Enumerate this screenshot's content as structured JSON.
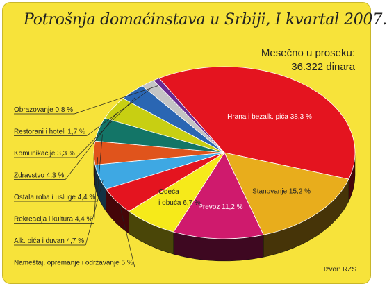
{
  "title": "Potrošnja domaćinstava u Srbiji, I kvartal 2007.",
  "subtitle_line1": "Mesečno u proseku:",
  "subtitle_line2": "36.322 dinara",
  "source": "Izvor: RZS",
  "chart_data": {
    "type": "pie",
    "title": "Potrošnja domaćinstava u Srbiji, I kvartal 2007.",
    "unit": "%",
    "slices": [
      {
        "label": "Hrana i bezalk. pića 38,3 %",
        "value": 38.3,
        "color": "#e4141f",
        "label_inside": true,
        "text_color": "#ffffff"
      },
      {
        "label": "Stanovanje 15,2 %",
        "value": 15.2,
        "color": "#e8ad1c",
        "label_inside": true,
        "text_color": "#222222"
      },
      {
        "label": "Prevoz 11,2 %",
        "value": 11.2,
        "color": "#cf1a6d",
        "label_inside": true,
        "text_color": "#ffffff"
      },
      {
        "label": "Odeća i obuća 6,7 %",
        "value": 6.7,
        "color": "#f6ea1a",
        "label_inside": true,
        "text_color": "#222222"
      },
      {
        "label": "Nameštaj, opremanje i održavanje 5 %",
        "value": 5.0,
        "color": "#e4141f",
        "label_inside": false
      },
      {
        "label": "Alk. pića i duvan 4,7 %",
        "value": 4.7,
        "color": "#3ea8e3",
        "label_inside": false
      },
      {
        "label": "Rekreacija i kultura 4,4 %",
        "value": 4.4,
        "color": "#e0541c",
        "label_inside": false
      },
      {
        "label": "Ostala roba i usluge 4,4 %",
        "value": 4.4,
        "color": "#137567",
        "label_inside": false
      },
      {
        "label": "Zdravstvo 4,3 %",
        "value": 4.3,
        "color": "#c8cf12",
        "label_inside": false
      },
      {
        "label": "Komunikacije 3,3 %",
        "value": 3.3,
        "color": "#2a66b3",
        "label_inside": false
      },
      {
        "label": "Restorani i hoteli 1,7 %",
        "value": 1.7,
        "color": "#c4c4c4",
        "label_inside": false
      },
      {
        "label": "Obrazovanje 0,8 %",
        "value": 0.8,
        "color": "#6a2a91",
        "label_inside": false
      }
    ]
  }
}
